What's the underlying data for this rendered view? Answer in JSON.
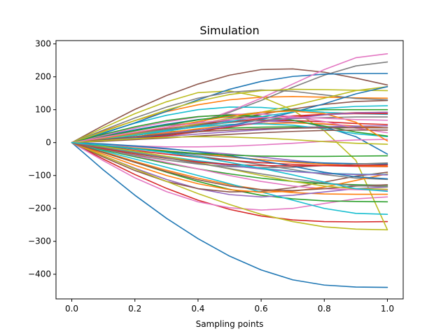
{
  "chart_data": {
    "type": "line",
    "title": "Simulation",
    "xlabel": "Sampling points",
    "ylabel": "",
    "xlim": [
      -0.05,
      1.05
    ],
    "ylim": [
      -475,
      310
    ],
    "xticks": [
      0.0,
      0.2,
      0.4,
      0.6,
      0.8,
      1.0
    ],
    "xtick_labels": [
      "0.0",
      "0.2",
      "0.4",
      "0.6",
      "0.8",
      "1.0"
    ],
    "yticks": [
      300,
      200,
      100,
      0,
      -100,
      -200,
      -300,
      -400
    ],
    "ytick_labels": [
      "300",
      "200",
      "100",
      "0",
      "−100",
      "−200",
      "−300",
      "−400"
    ],
    "grid": false,
    "x": [
      0.0,
      0.1,
      0.2,
      0.3,
      0.4,
      0.5,
      0.6,
      0.7,
      0.8,
      0.9,
      1.0
    ],
    "palette": [
      "#1f77b4",
      "#ff7f0e",
      "#2ca02c",
      "#d62728",
      "#9467bd",
      "#8c564b",
      "#e377c2",
      "#7f7f7f",
      "#bcbd22",
      "#17becf"
    ],
    "series": [
      {
        "color": "#1f77b4",
        "values": [
          0,
          -83,
          -160,
          -230,
          -292,
          -345,
          -387,
          -417,
          -433,
          -439,
          -440
        ]
      },
      {
        "color": "#ff7f0e",
        "values": [
          0,
          35,
          67,
          94,
          115,
          130,
          138,
          140,
          138,
          136,
          135
        ]
      },
      {
        "color": "#2ca02c",
        "values": [
          0,
          12,
          23,
          32,
          39,
          44,
          47,
          48,
          47,
          46,
          45
        ]
      },
      {
        "color": "#d62728",
        "values": [
          0,
          -50,
          -97,
          -139,
          -175,
          -203,
          -223,
          -235,
          -240,
          -241,
          -240
        ]
      },
      {
        "color": "#9467bd",
        "values": [
          0,
          20,
          38,
          52,
          61,
          66,
          66,
          62,
          56,
          49,
          45
        ]
      },
      {
        "color": "#8c564b",
        "values": [
          0,
          52,
          101,
          143,
          178,
          205,
          222,
          224,
          214,
          196,
          175
        ]
      },
      {
        "color": "#e377c2",
        "values": [
          0,
          -55,
          -107,
          -149,
          -180,
          -198,
          -205,
          -200,
          -185,
          -171,
          -165
        ]
      },
      {
        "color": "#7f7f7f",
        "values": [
          0,
          5,
          16,
          34,
          60,
          92,
          128,
          168,
          205,
          233,
          245
        ]
      },
      {
        "color": "#bcbd22",
        "values": [
          0,
          45,
          88,
          124,
          152,
          157,
          139,
          99,
          36,
          -54,
          -265
        ]
      },
      {
        "color": "#17becf",
        "values": [
          0,
          30,
          59,
          83,
          100,
          108,
          107,
          100,
          92,
          88,
          86
        ]
      },
      {
        "color": "#1f77b4",
        "values": [
          0,
          28,
          60,
          95,
          130,
          162,
          186,
          201,
          208,
          210,
          210
        ]
      },
      {
        "color": "#ff7f0e",
        "values": [
          0,
          -28,
          -57,
          -84,
          -108,
          -128,
          -143,
          -152,
          -156,
          -157,
          -157
        ]
      },
      {
        "color": "#2ca02c",
        "values": [
          0,
          -30,
          -60,
          -90,
          -118,
          -142,
          -160,
          -171,
          -177,
          -179,
          -180
        ]
      },
      {
        "color": "#d62728",
        "values": [
          0,
          10,
          22,
          35,
          49,
          62,
          73,
          81,
          86,
          88,
          88
        ]
      },
      {
        "color": "#9467bd",
        "values": [
          0,
          -40,
          -78,
          -112,
          -140,
          -158,
          -165,
          -160,
          -150,
          -140,
          -135
        ]
      },
      {
        "color": "#8c564b",
        "values": [
          0,
          -44,
          -85,
          -118,
          -140,
          -150,
          -148,
          -137,
          -120,
          -102,
          -90
        ]
      },
      {
        "color": "#e377c2",
        "values": [
          0,
          4,
          14,
          32,
          60,
          95,
          135,
          178,
          222,
          258,
          270
        ]
      },
      {
        "color": "#7f7f7f",
        "values": [
          0,
          -10,
          -20,
          -30,
          -41,
          -53,
          -67,
          -82,
          -97,
          -108,
          -112
        ]
      },
      {
        "color": "#bcbd22",
        "values": [
          0,
          -40,
          -80,
          -118,
          -155,
          -188,
          -218,
          -240,
          -256,
          -263,
          -265
        ]
      },
      {
        "color": "#17becf",
        "values": [
          0,
          -25,
          -50,
          -75,
          -100,
          -125,
          -150,
          -175,
          -200,
          -215,
          -218
        ]
      },
      {
        "color": "#1f77b4",
        "values": [
          0,
          20,
          39,
          56,
          70,
          78,
          78,
          68,
          48,
          18,
          -35
        ]
      },
      {
        "color": "#ff7f0e",
        "values": [
          0,
          8,
          18,
          30,
          42,
          52,
          58,
          60,
          57,
          50,
          45
        ]
      },
      {
        "color": "#2ca02c",
        "values": [
          0,
          -22,
          -43,
          -63,
          -80,
          -95,
          -108,
          -118,
          -125,
          -128,
          -130
        ]
      },
      {
        "color": "#d62728",
        "values": [
          0,
          15,
          30,
          43,
          55,
          63,
          67,
          67,
          63,
          58,
          55
        ]
      },
      {
        "color": "#9467bd",
        "values": [
          0,
          -6,
          -12,
          -19,
          -27,
          -35,
          -44,
          -54,
          -63,
          -70,
          -72
        ]
      },
      {
        "color": "#8c564b",
        "values": [
          0,
          12,
          25,
          39,
          54,
          70,
          86,
          102,
          116,
          125,
          128
        ]
      },
      {
        "color": "#e377c2",
        "values": [
          0,
          -20,
          -40,
          -60,
          -80,
          -100,
          -118,
          -132,
          -140,
          -143,
          -145
        ]
      },
      {
        "color": "#7f7f7f",
        "values": [
          0,
          38,
          75,
          108,
          135,
          153,
          160,
          156,
          145,
          134,
          130
        ]
      },
      {
        "color": "#bcbd22",
        "values": [
          0,
          33,
          67,
          99,
          126,
          146,
          158,
          162,
          161,
          159,
          158
        ]
      },
      {
        "color": "#17becf",
        "values": [
          0,
          12,
          25,
          37,
          48,
          55,
          57,
          53,
          42,
          27,
          18
        ]
      },
      {
        "color": "#1f77b4",
        "values": [
          0,
          -10,
          -19,
          -28,
          -36,
          -44,
          -52,
          -58,
          -62,
          -64,
          -65
        ]
      },
      {
        "color": "#ff7f0e",
        "values": [
          0,
          -35,
          -69,
          -100,
          -125,
          -143,
          -151,
          -148,
          -135,
          -115,
          -95
        ]
      },
      {
        "color": "#2ca02c",
        "values": [
          0,
          18,
          36,
          53,
          69,
          82,
          92,
          98,
          100,
          100,
          100
        ]
      },
      {
        "color": "#d62728",
        "values": [
          0,
          -12,
          -24,
          -35,
          -45,
          -54,
          -61,
          -66,
          -70,
          -72,
          -73
        ]
      },
      {
        "color": "#9467bd",
        "values": [
          0,
          6,
          12,
          19,
          26,
          33,
          39,
          44,
          48,
          50,
          51
        ]
      },
      {
        "color": "#8c564b",
        "values": [
          0,
          -30,
          -60,
          -88,
          -113,
          -132,
          -143,
          -146,
          -140,
          -132,
          -128
        ]
      },
      {
        "color": "#e377c2",
        "values": [
          0,
          22,
          44,
          63,
          78,
          86,
          87,
          79,
          64,
          44,
          30
        ]
      },
      {
        "color": "#7f7f7f",
        "values": [
          0,
          -20,
          -38,
          -53,
          -65,
          -73,
          -76,
          -75,
          -70,
          -65,
          -62
        ]
      },
      {
        "color": "#bcbd22",
        "values": [
          0,
          12,
          26,
          41,
          57,
          74,
          92,
          112,
          135,
          158,
          170
        ]
      },
      {
        "color": "#17becf",
        "values": [
          0,
          -14,
          -28,
          -42,
          -55,
          -67,
          -78,
          -87,
          -93,
          -96,
          -97
        ]
      },
      {
        "color": "#1f77b4",
        "values": [
          0,
          6,
          14,
          24,
          37,
          52,
          70,
          92,
          118,
          148,
          170
        ]
      },
      {
        "color": "#ff7f0e",
        "values": [
          0,
          -8,
          -16,
          -25,
          -34,
          -43,
          -52,
          -60,
          -66,
          -70,
          -72
        ]
      },
      {
        "color": "#2ca02c",
        "values": [
          0,
          25,
          48,
          67,
          79,
          84,
          80,
          68,
          50,
          32,
          20
        ]
      },
      {
        "color": "#d62728",
        "values": [
          0,
          5,
          12,
          21,
          33,
          47,
          62,
          76,
          86,
          91,
          92
        ]
      },
      {
        "color": "#9467bd",
        "values": [
          0,
          -16,
          -31,
          -45,
          -58,
          -70,
          -80,
          -88,
          -94,
          -97,
          -98
        ]
      },
      {
        "color": "#8c564b",
        "values": [
          0,
          4,
          9,
          14,
          20,
          25,
          30,
          34,
          37,
          38,
          38
        ]
      },
      {
        "color": "#e377c2",
        "values": [
          0,
          -6,
          -10,
          -13,
          -13,
          -11,
          -7,
          -2,
          4,
          8,
          10
        ]
      },
      {
        "color": "#7f7f7f",
        "values": [
          0,
          14,
          28,
          41,
          52,
          61,
          68,
          73,
          76,
          78,
          78
        ]
      },
      {
        "color": "#bcbd22",
        "values": [
          0,
          -12,
          -26,
          -42,
          -60,
          -80,
          -100,
          -118,
          -132,
          -140,
          -142
        ]
      },
      {
        "color": "#17becf",
        "values": [
          0,
          10,
          22,
          35,
          49,
          64,
          79,
          93,
          104,
          110,
          112
        ]
      },
      {
        "color": "#1f77b4",
        "values": [
          0,
          -4,
          -10,
          -18,
          -28,
          -40,
          -55,
          -72,
          -90,
          -104,
          -110
        ]
      },
      {
        "color": "#ff7f0e",
        "values": [
          0,
          14,
          30,
          47,
          64,
          80,
          92,
          96,
          88,
          62,
          5
        ]
      },
      {
        "color": "#2ca02c",
        "values": [
          0,
          -9,
          -18,
          -26,
          -33,
          -38,
          -41,
          -42,
          -42,
          -41,
          -40
        ]
      },
      {
        "color": "#d62728",
        "values": [
          0,
          -18,
          -34,
          -48,
          -59,
          -66,
          -70,
          -71,
          -70,
          -69,
          -68
        ]
      },
      {
        "color": "#9467bd",
        "values": [
          0,
          8,
          17,
          27,
          38,
          50,
          62,
          74,
          84,
          90,
          92
        ]
      },
      {
        "color": "#8c564b",
        "values": [
          0,
          9,
          18,
          26,
          33,
          38,
          42,
          44,
          45,
          45,
          45
        ]
      },
      {
        "color": "#e377c2",
        "values": [
          0,
          16,
          32,
          47,
          60,
          70,
          76,
          77,
          74,
          70,
          68
        ]
      },
      {
        "color": "#7f7f7f",
        "values": [
          0,
          -15,
          -31,
          -47,
          -63,
          -79,
          -95,
          -110,
          -123,
          -131,
          -134
        ]
      },
      {
        "color": "#bcbd22",
        "values": [
          0,
          6,
          12,
          16,
          18,
          17,
          14,
          9,
          3,
          -2,
          -5
        ]
      },
      {
        "color": "#17becf",
        "values": [
          0,
          -8,
          -18,
          -30,
          -44,
          -60,
          -78,
          -98,
          -120,
          -140,
          -148
        ]
      }
    ]
  }
}
